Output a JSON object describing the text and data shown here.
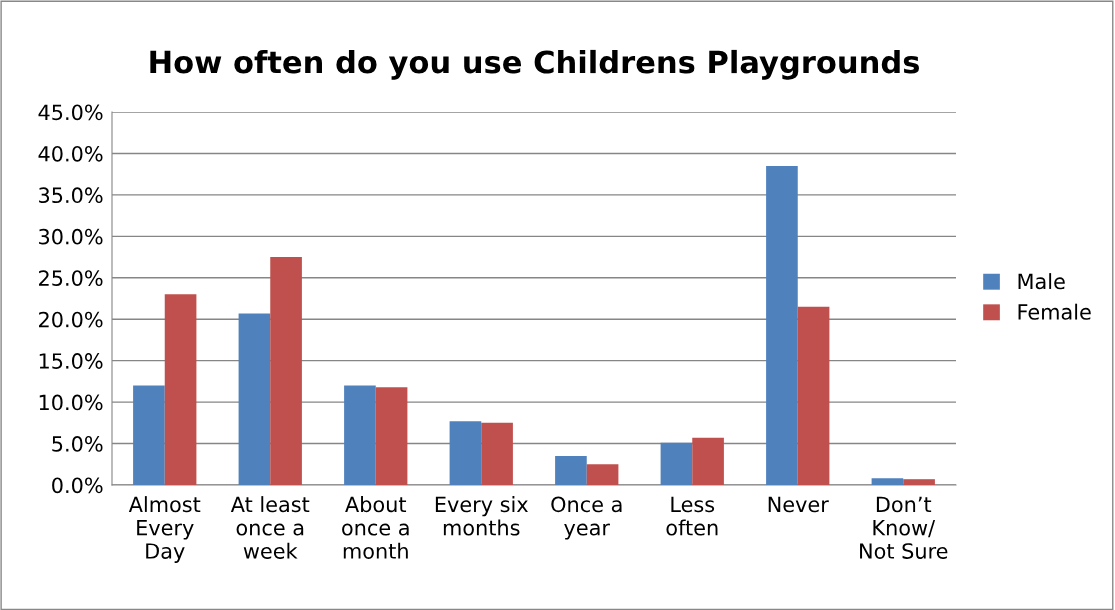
{
  "chart_data": {
    "type": "bar",
    "title": "How often do you use Childrens Playgrounds",
    "categories": [
      "Almost\nEvery\nDay",
      "At least\nonce a\nweek",
      "About\nonce a\nmonth",
      "Every six\nmonths",
      "Once a\nyear",
      "Less\noften",
      "Never",
      "Don’t\nKnow/\nNot Sure"
    ],
    "series": [
      {
        "name": "Male",
        "color": "#4f81bd",
        "values": [
          12.0,
          20.7,
          12.0,
          7.7,
          3.5,
          5.1,
          38.5,
          0.8
        ]
      },
      {
        "name": "Female",
        "color": "#c0504d",
        "values": [
          23.0,
          27.5,
          11.8,
          7.5,
          2.5,
          5.7,
          21.5,
          0.7
        ]
      }
    ],
    "ylim": [
      0,
      45
    ],
    "yticks": [
      {
        "value": 0,
        "label": "0.0%"
      },
      {
        "value": 5,
        "label": "5.0%"
      },
      {
        "value": 10,
        "label": "10.0%"
      },
      {
        "value": 15,
        "label": "15.0%"
      },
      {
        "value": 20,
        "label": "20.0%"
      },
      {
        "value": 25,
        "label": "25.0%"
      },
      {
        "value": 30,
        "label": "30.0%"
      },
      {
        "value": 35,
        "label": "35.0%"
      },
      {
        "value": 40,
        "label": "40.0%"
      },
      {
        "value": 45,
        "label": "45.0%"
      }
    ],
    "grid": "y",
    "legend": "right"
  }
}
